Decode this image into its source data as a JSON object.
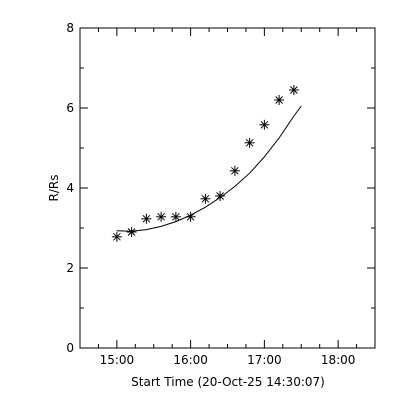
{
  "chart_data": {
    "type": "scatter",
    "xlabel": "Start Time (20-Oct-25 14:30:07)",
    "ylabel": "R/Rs",
    "xlim": [
      "14:30",
      "18:30"
    ],
    "ylim": [
      0,
      8
    ],
    "x_ticks": [
      "15:00",
      "16:00",
      "17:00",
      "18:00"
    ],
    "x_minor_ticks": [
      "14:45",
      "15:15",
      "15:30",
      "15:45",
      "16:15",
      "16:30",
      "16:45",
      "17:15",
      "17:30",
      "17:45",
      "18:15"
    ],
    "y_ticks": [
      0,
      2,
      4,
      6,
      8
    ],
    "y_minor_ticks": [
      1,
      3,
      5,
      7
    ],
    "grid": false,
    "series": [
      {
        "marker": "asterisk",
        "points": [
          {
            "x": "15:00",
            "y": 2.78
          },
          {
            "x": "15:12",
            "y": 2.9
          },
          {
            "x": "15:24",
            "y": 3.23
          },
          {
            "x": "15:36",
            "y": 3.28
          },
          {
            "x": "15:48",
            "y": 3.28
          },
          {
            "x": "16:00",
            "y": 3.28
          },
          {
            "x": "16:12",
            "y": 3.73
          },
          {
            "x": "16:24",
            "y": 3.8
          },
          {
            "x": "16:36",
            "y": 4.43
          },
          {
            "x": "16:48",
            "y": 5.13
          },
          {
            "x": "17:00",
            "y": 5.58
          },
          {
            "x": "17:12",
            "y": 6.2
          },
          {
            "x": "17:24",
            "y": 6.45
          }
        ]
      },
      {
        "line": "solid",
        "points": [
          {
            "x": "15:00",
            "y": 2.93
          },
          {
            "x": "15:12",
            "y": 2.92
          },
          {
            "x": "15:24",
            "y": 2.96
          },
          {
            "x": "15:36",
            "y": 3.04
          },
          {
            "x": "15:48",
            "y": 3.16
          },
          {
            "x": "16:00",
            "y": 3.32
          },
          {
            "x": "16:12",
            "y": 3.52
          },
          {
            "x": "16:24",
            "y": 3.76
          },
          {
            "x": "16:36",
            "y": 4.04
          },
          {
            "x": "16:48",
            "y": 4.37
          },
          {
            "x": "17:00",
            "y": 4.78
          },
          {
            "x": "17:12",
            "y": 5.25
          },
          {
            "x": "17:24",
            "y": 5.8
          },
          {
            "x": "17:30",
            "y": 6.05
          }
        ]
      }
    ]
  }
}
